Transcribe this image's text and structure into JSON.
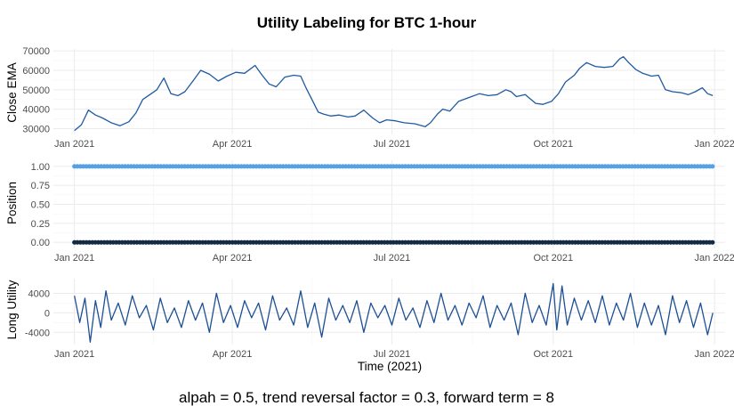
{
  "figure": {
    "title": "Utility Labeling for BTC 1-hour",
    "caption": "alpah = 0.5, trend reversal factor = 0.3, forward term = 8",
    "colors": {
      "price": "#1f5aa0",
      "long_position": "#56a0e8",
      "flat_position": "#132b43",
      "utility": "#1d4f95"
    }
  },
  "chart_data": [
    {
      "type": "line",
      "panel": "close_ema",
      "ylabel": "Close EMA",
      "xlabel": "",
      "xlim": [
        "2020-12-20",
        "2022-01-07"
      ],
      "ylim": [
        27000,
        71000
      ],
      "x_ticks": [
        "2021-01-01",
        "2021-04-01",
        "2021-07-01",
        "2021-10-01",
        "2022-01-01"
      ],
      "x_tick_labels": [
        "Jan 2021",
        "Apr 2021",
        "Jul 2021",
        "Oct 2021",
        "Jan 2022"
      ],
      "y_ticks": [
        30000,
        40000,
        50000,
        60000,
        70000
      ],
      "y_tick_labels": [
        "30000",
        "40000",
        "50000",
        "60000",
        "70000"
      ],
      "grid": true,
      "series": [
        {
          "x": [
            "2021-01-01",
            "2021-01-05",
            "2021-01-09",
            "2021-01-13",
            "2021-01-17",
            "2021-01-22",
            "2021-01-27",
            "2021-02-01",
            "2021-02-05",
            "2021-02-09",
            "2021-02-13",
            "2021-02-17",
            "2021-02-21",
            "2021-02-25",
            "2021-03-01",
            "2021-03-05",
            "2021-03-10",
            "2021-03-14",
            "2021-03-19",
            "2021-03-24",
            "2021-03-29",
            "2021-04-03",
            "2021-04-08",
            "2021-04-14",
            "2021-04-18",
            "2021-04-22",
            "2021-04-26",
            "2021-05-01",
            "2021-05-06",
            "2021-05-10",
            "2021-05-13",
            "2021-05-17",
            "2021-05-20",
            "2021-05-23",
            "2021-05-27",
            "2021-06-01",
            "2021-06-06",
            "2021-06-10",
            "2021-06-15",
            "2021-06-20",
            "2021-06-24",
            "2021-06-28",
            "2021-07-03",
            "2021-07-08",
            "2021-07-14",
            "2021-07-20",
            "2021-07-23",
            "2021-07-27",
            "2021-07-30",
            "2021-08-03",
            "2021-08-08",
            "2021-08-14",
            "2021-08-20",
            "2021-08-25",
            "2021-08-30",
            "2021-09-04",
            "2021-09-07",
            "2021-09-10",
            "2021-09-15",
            "2021-09-21",
            "2021-09-25",
            "2021-09-30",
            "2021-10-04",
            "2021-10-08",
            "2021-10-13",
            "2021-10-16",
            "2021-10-20",
            "2021-10-25",
            "2021-10-30",
            "2021-11-04",
            "2021-11-08",
            "2021-11-10",
            "2021-11-13",
            "2021-11-17",
            "2021-11-21",
            "2021-11-26",
            "2021-11-30",
            "2021-12-04",
            "2021-12-08",
            "2021-12-13",
            "2021-12-17",
            "2021-12-21",
            "2021-12-25",
            "2021-12-28",
            "2021-12-31"
          ],
          "y": [
            29000,
            32000,
            39500,
            37000,
            35500,
            33000,
            31500,
            33500,
            38000,
            45000,
            47500,
            50000,
            56000,
            48000,
            47000,
            49000,
            55000,
            60000,
            58000,
            54500,
            57000,
            59000,
            58500,
            62500,
            57500,
            53000,
            51500,
            56500,
            57500,
            57000,
            51000,
            44000,
            38500,
            37500,
            36500,
            37000,
            36000,
            36500,
            39500,
            35500,
            33000,
            34500,
            34000,
            33000,
            32500,
            31000,
            33000,
            37500,
            40000,
            39000,
            44000,
            46000,
            48000,
            47000,
            47500,
            50000,
            49000,
            46500,
            47500,
            43000,
            42500,
            44000,
            48000,
            54000,
            57500,
            61000,
            64000,
            62000,
            61500,
            62000,
            66000,
            67000,
            64000,
            60500,
            58500,
            57000,
            57500,
            50000,
            49000,
            48500,
            47500,
            49000,
            51000,
            48000,
            47000
          ]
        }
      ]
    },
    {
      "type": "scatter",
      "panel": "position",
      "ylabel": "Position",
      "xlabel": "",
      "xlim": [
        "2020-12-20",
        "2022-01-07"
      ],
      "ylim": [
        -0.08,
        1.08
      ],
      "x_ticks": [
        "2021-01-01",
        "2021-04-01",
        "2021-07-01",
        "2021-10-01",
        "2022-01-01"
      ],
      "x_tick_labels": [
        "Jan 2021",
        "Apr 2021",
        "Jul 2021",
        "Oct 2021",
        "Jan 2022"
      ],
      "y_ticks": [
        0,
        0.25,
        0.5,
        0.75,
        1
      ],
      "y_tick_labels": [
        "0.00",
        "0.25",
        "0.50",
        "0.75",
        "1.00"
      ],
      "grid": true,
      "x_range": [
        "2021-01-01",
        "2021-12-31"
      ],
      "series": [
        {
          "y": 1,
          "color": "#56a0e8",
          "point_spacing_days": 1.7
        },
        {
          "y": 0,
          "color": "#132b43",
          "point_spacing_days": 1.7
        }
      ]
    },
    {
      "type": "line",
      "panel": "long_utility",
      "ylabel": "Long Utility",
      "xlabel": "Time (2021)",
      "xlim": [
        "2020-12-20",
        "2022-01-07"
      ],
      "ylim": [
        -6500,
        7000
      ],
      "x_ticks": [
        "2021-01-01",
        "2021-04-01",
        "2021-07-01",
        "2021-10-01",
        "2022-01-01"
      ],
      "x_tick_labels": [
        "Jan 2021",
        "Apr 2021",
        "Jul 2021",
        "Oct 2021",
        "Jan 2022"
      ],
      "y_ticks": [
        -4000,
        0,
        4000
      ],
      "y_tick_labels": [
        "-4000",
        "0",
        "4000"
      ],
      "grid": true,
      "series": [
        {
          "x": [
            "2021-01-01",
            "2021-01-04",
            "2021-01-07",
            "2021-01-10",
            "2021-01-13",
            "2021-01-16",
            "2021-01-19",
            "2021-01-22",
            "2021-01-26",
            "2021-01-30",
            "2021-02-03",
            "2021-02-07",
            "2021-02-11",
            "2021-02-15",
            "2021-02-19",
            "2021-02-23",
            "2021-02-27",
            "2021-03-03",
            "2021-03-07",
            "2021-03-11",
            "2021-03-15",
            "2021-03-19",
            "2021-03-23",
            "2021-03-27",
            "2021-03-31",
            "2021-04-04",
            "2021-04-08",
            "2021-04-12",
            "2021-04-16",
            "2021-04-20",
            "2021-04-24",
            "2021-04-28",
            "2021-05-02",
            "2021-05-06",
            "2021-05-10",
            "2021-05-14",
            "2021-05-18",
            "2021-05-22",
            "2021-05-26",
            "2021-05-30",
            "2021-06-03",
            "2021-06-07",
            "2021-06-11",
            "2021-06-15",
            "2021-06-19",
            "2021-06-23",
            "2021-06-27",
            "2021-07-01",
            "2021-07-05",
            "2021-07-09",
            "2021-07-13",
            "2021-07-17",
            "2021-07-21",
            "2021-07-25",
            "2021-07-29",
            "2021-08-02",
            "2021-08-06",
            "2021-08-10",
            "2021-08-14",
            "2021-08-18",
            "2021-08-22",
            "2021-08-26",
            "2021-08-30",
            "2021-09-03",
            "2021-09-07",
            "2021-09-11",
            "2021-09-15",
            "2021-09-19",
            "2021-09-23",
            "2021-09-27",
            "2021-10-01",
            "2021-10-03",
            "2021-10-06",
            "2021-10-09",
            "2021-10-13",
            "2021-10-17",
            "2021-10-21",
            "2021-10-25",
            "2021-10-29",
            "2021-11-02",
            "2021-11-06",
            "2021-11-10",
            "2021-11-14",
            "2021-11-18",
            "2021-11-22",
            "2021-11-26",
            "2021-11-30",
            "2021-12-04",
            "2021-12-08",
            "2021-12-12",
            "2021-12-16",
            "2021-12-20",
            "2021-12-24",
            "2021-12-28",
            "2021-12-31"
          ],
          "y": [
            3500,
            -2000,
            3000,
            -6000,
            2500,
            -3000,
            4500,
            -1500,
            2000,
            -2500,
            3500,
            -1000,
            1500,
            -3500,
            3000,
            -2000,
            1000,
            -3000,
            2500,
            -1500,
            2000,
            -4000,
            4000,
            -2000,
            1500,
            -3000,
            2500,
            -1000,
            2000,
            -3500,
            3500,
            -1500,
            1000,
            -2500,
            4500,
            -3000,
            2000,
            -5000,
            3000,
            -1500,
            1500,
            -2000,
            2500,
            -4000,
            2000,
            -1000,
            1500,
            -2500,
            3000,
            -1500,
            1000,
            -3000,
            2500,
            -2000,
            4000,
            -1500,
            1500,
            -2500,
            2000,
            -1000,
            3500,
            -3000,
            1500,
            -1500,
            2000,
            -4500,
            4000,
            -2000,
            1500,
            -2500,
            6000,
            -3500,
            5500,
            -2500,
            3000,
            -1500,
            2500,
            -2000,
            3500,
            -2500,
            2000,
            -1500,
            4000,
            -3000,
            2000,
            -2500,
            1500,
            -4500,
            3500,
            -2000,
            2500,
            -3000,
            2000,
            -4500,
            0
          ]
        }
      ]
    }
  ]
}
